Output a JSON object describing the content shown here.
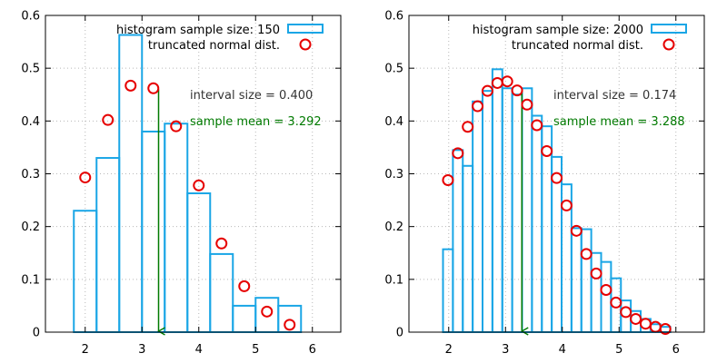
{
  "chart_data": [
    {
      "type": "bar",
      "xlim": [
        1.3,
        6.5
      ],
      "ylim": [
        0,
        0.6
      ],
      "xticks": [
        2,
        3,
        4,
        5,
        6
      ],
      "yticks": [
        0,
        0.1,
        0.2,
        0.3,
        0.4,
        0.5,
        0.6
      ],
      "grid": true,
      "legend_position": "top-right",
      "series": [
        {
          "name": "histogram sample size: 150",
          "kind": "histogram",
          "bin_edges": [
            1.8,
            2.2,
            2.6,
            3.0,
            3.4,
            3.8,
            4.2,
            4.6,
            5.0,
            5.4,
            5.8
          ],
          "values": [
            0.23,
            0.33,
            0.563,
            0.38,
            0.395,
            0.263,
            0.148,
            0.05,
            0.065,
            0.05
          ]
        },
        {
          "name": "truncated normal dist.",
          "kind": "points",
          "x": [
            2.0,
            2.4,
            2.8,
            3.2,
            3.6,
            4.0,
            4.4,
            4.8,
            5.2,
            5.6
          ],
          "y": [
            0.293,
            0.402,
            0.467,
            0.462,
            0.39,
            0.278,
            0.168,
            0.087,
            0.039,
            0.014
          ]
        }
      ],
      "mean_marker": {
        "x": 3.292,
        "y_top": 0.46,
        "y_bottom": 0
      },
      "annotations": {
        "interval": "interval size = 0.400",
        "mean": "sample mean = 3.292"
      },
      "colors": {
        "histogram": "#1aa6e6",
        "points": "#e60000",
        "mean": "#007a00"
      }
    },
    {
      "type": "bar",
      "xlim": [
        1.3,
        6.5
      ],
      "ylim": [
        0,
        0.6
      ],
      "xticks": [
        2,
        3,
        4,
        5,
        6
      ],
      "yticks": [
        0,
        0.1,
        0.2,
        0.3,
        0.4,
        0.5,
        0.6
      ],
      "grid": true,
      "legend_position": "top-right",
      "series": [
        {
          "name": "histogram sample size: 2000",
          "kind": "histogram",
          "bin_edges": [
            1.9,
            2.074,
            2.248,
            2.422,
            2.596,
            2.77,
            2.944,
            3.118,
            3.292,
            3.466,
            3.64,
            3.814,
            3.988,
            4.162,
            4.336,
            4.51,
            4.684,
            4.858,
            5.032,
            5.206,
            5.38,
            5.554,
            5.728,
            5.902
          ],
          "values": [
            0.157,
            0.345,
            0.315,
            0.437,
            0.457,
            0.498,
            0.462,
            0.45,
            0.462,
            0.41,
            0.39,
            0.332,
            0.28,
            0.197,
            0.195,
            0.15,
            0.133,
            0.102,
            0.06,
            0.04,
            0.025,
            0.015,
            0.01
          ]
        },
        {
          "name": "truncated normal dist.",
          "kind": "points",
          "x": [
            1.987,
            2.161,
            2.335,
            2.509,
            2.683,
            2.857,
            3.031,
            3.205,
            3.379,
            3.553,
            3.727,
            3.901,
            4.075,
            4.249,
            4.423,
            4.597,
            4.771,
            4.945,
            5.119,
            5.293,
            5.467,
            5.641,
            5.815
          ],
          "y": [
            0.288,
            0.339,
            0.389,
            0.428,
            0.457,
            0.472,
            0.475,
            0.458,
            0.431,
            0.392,
            0.343,
            0.292,
            0.24,
            0.192,
            0.148,
            0.111,
            0.08,
            0.056,
            0.038,
            0.025,
            0.016,
            0.01,
            0.006
          ]
        }
      ],
      "mean_marker": {
        "x": 3.288,
        "y_top": 0.46,
        "y_bottom": 0
      },
      "annotations": {
        "interval": "interval size = 0.174",
        "mean": "sample mean = 3.288"
      },
      "colors": {
        "histogram": "#1aa6e6",
        "points": "#e60000",
        "mean": "#007a00"
      }
    }
  ]
}
